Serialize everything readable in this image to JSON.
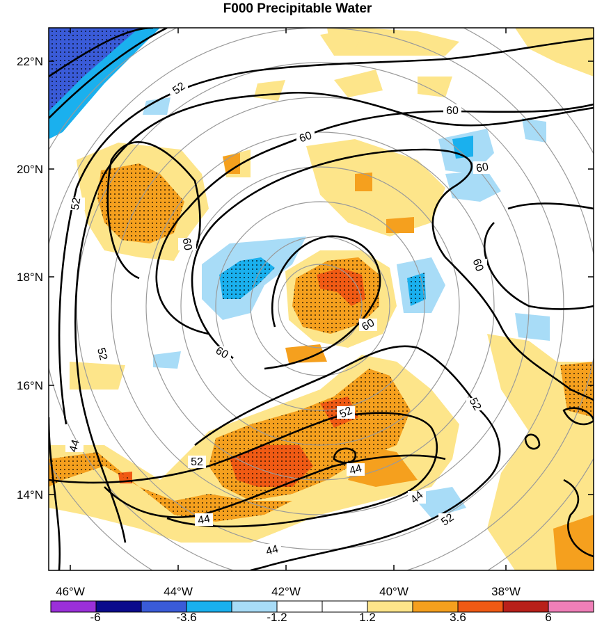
{
  "title": "F000 Precipitable Water",
  "axes": {
    "lat_labels": [
      "22°N",
      "20°N",
      "18°N",
      "16°N",
      "14°N"
    ],
    "lon_labels": [
      "46°W",
      "44°W",
      "42°W",
      "40°W",
      "38°W"
    ]
  },
  "colorbar": {
    "labels": [
      "-6",
      "-3.6",
      "-1.2",
      "1.2",
      "3.6",
      "6"
    ],
    "colors": [
      "#9b30d9",
      "#0a0a8c",
      "#3a5bd8",
      "#1ab0ee",
      "#a8dcf7",
      "#ffffff",
      "#ffffff",
      "#fde58a",
      "#f5a01e",
      "#f05a14",
      "#b8201a",
      "#f07fb8"
    ]
  },
  "contour_labels": [
    "52",
    "60",
    "60",
    "60",
    "60",
    "60",
    "60",
    "60",
    "52",
    "52",
    "52",
    "44",
    "52",
    "52",
    "44",
    "44",
    "44",
    "52",
    "44"
  ]
}
